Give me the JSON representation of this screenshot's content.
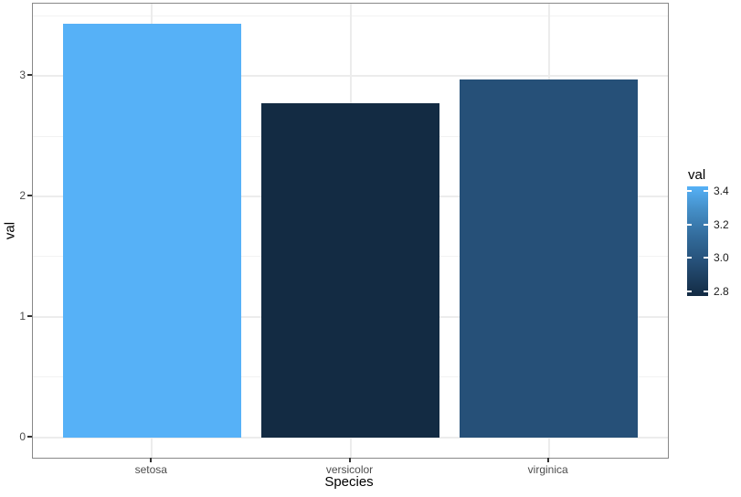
{
  "chart_data": {
    "type": "bar",
    "title": "",
    "xlabel": "Species",
    "ylabel": "val",
    "categories": [
      "setosa",
      "versicolor",
      "virginica"
    ],
    "values": [
      3.43,
      2.77,
      2.97
    ],
    "bar_colors": [
      "#56B1F7",
      "#132B43",
      "#265078"
    ],
    "ylim": [
      -0.17,
      3.6
    ],
    "y_major_ticks": [
      "0",
      "1",
      "2",
      "3"
    ],
    "y_major_values": [
      0,
      1,
      2,
      3
    ],
    "y_minor_values": [
      0.5,
      1.5,
      2.5,
      3.5
    ],
    "grid": "on",
    "legend": {
      "position": "right",
      "style": "colorbar",
      "title": "val",
      "tick_labels": [
        "3.4",
        "3.2",
        "3.0",
        "2.8"
      ],
      "tick_values": [
        3.4,
        3.2,
        3.0,
        2.8
      ],
      "value_range": [
        2.77,
        3.43
      ],
      "low_color": "#132B43",
      "mid_color": "#265078",
      "high_color": "#56B1F7"
    }
  },
  "styles": {
    "panel_border": "#888888",
    "grid_major": "#ECECEC",
    "grid_minor": "#F2F2F2",
    "tick_mark": "#333333",
    "axis_text": "#4D4D4D",
    "title_text": "#000000",
    "background": "#FFFFFF"
  }
}
